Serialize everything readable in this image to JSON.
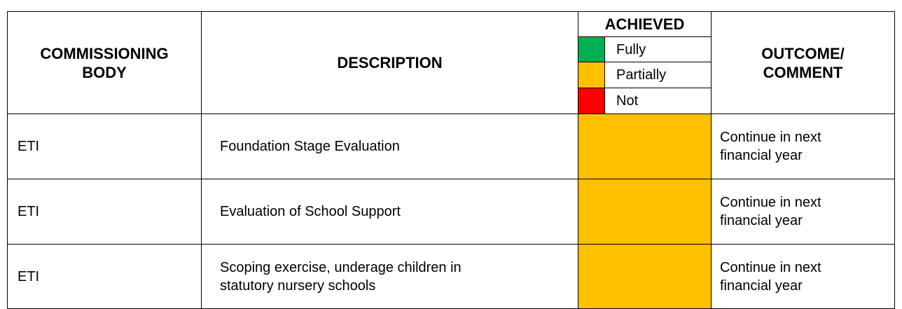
{
  "header": {
    "commissioning_body": "COMMISSIONING BODY",
    "description": "DESCRIPTION",
    "achieved": "ACHIEVED",
    "legend": [
      "Fully",
      "Partially",
      "Not"
    ],
    "outcome_comment": "OUTCOME/ COMMENT"
  },
  "table": {
    "rows": [
      [
        "ETI",
        "Foundation Stage Evaluation",
        "Continue in next financial year"
      ],
      [
        "ETI",
        "Evaluation of School Support",
        "Continue in next financial year"
      ],
      [
        "ETI",
        "Scoping exercise, underage children in statutory nursery schools",
        "Continue in next financial year"
      ]
    ]
  }
}
